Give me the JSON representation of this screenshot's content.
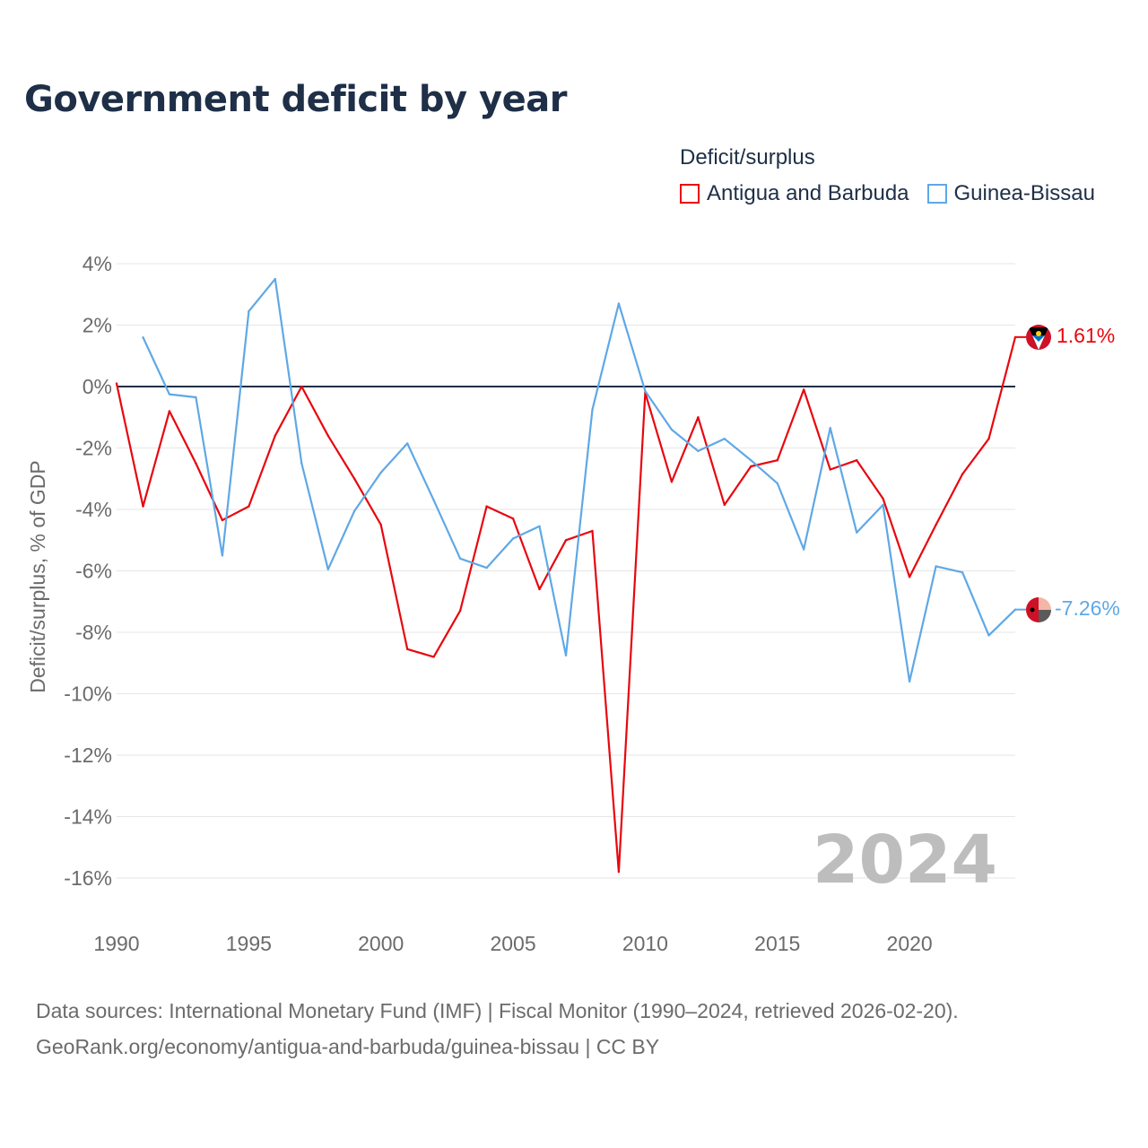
{
  "title": "Government deficit by year",
  "legend": {
    "title": "Deficit/surplus",
    "entries": [
      {
        "label": "Antigua and Barbuda",
        "color": "#e8070e"
      },
      {
        "label": "Guinea-Bissau",
        "color": "#5fa8e6"
      }
    ]
  },
  "footer": {
    "line1": "Data sources: International Monetary Fund (IMF) | Fiscal Monitor (1990–2024, retrieved 2026-02-20).",
    "line2": "GeoRank.org/economy/antigua-and-barbuda/guinea-bissau | CC BY"
  },
  "chart_data": {
    "type": "line",
    "title": "Government deficit by year",
    "ylabel": "Deficit/surplus, % of GDP",
    "xlabel": "",
    "xlim": [
      1990,
      2024
    ],
    "ylim": [
      -17,
      4
    ],
    "y_ticks": [
      4,
      2,
      0,
      -2,
      -4,
      -6,
      -8,
      -10,
      -12,
      -14,
      -16
    ],
    "y_tick_labels": [
      "4%",
      "2%",
      "0%",
      "-2%",
      "-4%",
      "-6%",
      "-8%",
      "-10%",
      "-12%",
      "-14%",
      "-16%"
    ],
    "x_ticks": [
      1990,
      1995,
      2000,
      2005,
      2010,
      2015,
      2020
    ],
    "x_tick_labels": [
      "1990",
      "1995",
      "2000",
      "2005",
      "2010",
      "2015",
      "2020"
    ],
    "zero_line": 0,
    "grid": true,
    "legend_position": "top-right",
    "year_watermark": "2024",
    "series": [
      {
        "name": "Antigua and Barbuda",
        "color": "#e8070e",
        "end_label": "1.61%",
        "points": [
          [
            1990,
            0.1
          ],
          [
            1991,
            -3.9
          ],
          [
            1992,
            -0.8
          ],
          [
            1993,
            -2.5
          ],
          [
            1994,
            -4.35
          ],
          [
            1995,
            -3.9
          ],
          [
            1996,
            -1.6
          ],
          [
            1997,
            0.0
          ],
          [
            1998,
            -1.6
          ],
          [
            1999,
            -3.0
          ],
          [
            2000,
            -4.5
          ],
          [
            2001,
            -8.55
          ],
          [
            2002,
            -8.8
          ],
          [
            2003,
            -7.3
          ],
          [
            2004,
            -3.9
          ],
          [
            2005,
            -4.3
          ],
          [
            2006,
            -6.6
          ],
          [
            2007,
            -5.0
          ],
          [
            2008,
            -4.7
          ],
          [
            2009,
            -15.8
          ],
          [
            2010,
            -0.2
          ],
          [
            2011,
            -3.1
          ],
          [
            2012,
            -1.0
          ],
          [
            2013,
            -3.85
          ],
          [
            2014,
            -2.6
          ],
          [
            2015,
            -2.4
          ],
          [
            2016,
            -0.1
          ],
          [
            2017,
            -2.7
          ],
          [
            2018,
            -2.4
          ],
          [
            2019,
            -3.65
          ],
          [
            2020,
            -6.2
          ],
          [
            2021,
            -4.5
          ],
          [
            2022,
            -2.85
          ],
          [
            2023,
            -1.7
          ],
          [
            2024,
            1.61
          ]
        ]
      },
      {
        "name": "Guinea-Bissau",
        "color": "#5fa8e6",
        "end_label": "-7.26%",
        "points": [
          [
            1991,
            1.6
          ],
          [
            1992,
            -0.25
          ],
          [
            1993,
            -0.35
          ],
          [
            1994,
            -5.5
          ],
          [
            1995,
            2.45
          ],
          [
            1996,
            3.5
          ],
          [
            1997,
            -2.5
          ],
          [
            1998,
            -5.95
          ],
          [
            1999,
            -4.05
          ],
          [
            2000,
            -2.8
          ],
          [
            2001,
            -1.85
          ],
          [
            2002,
            -3.7
          ],
          [
            2003,
            -5.6
          ],
          [
            2004,
            -5.9
          ],
          [
            2005,
            -4.95
          ],
          [
            2006,
            -4.55
          ],
          [
            2007,
            -8.75
          ],
          [
            2008,
            -0.75
          ],
          [
            2009,
            2.7
          ],
          [
            2010,
            -0.15
          ],
          [
            2011,
            -1.4
          ],
          [
            2012,
            -2.1
          ],
          [
            2013,
            -1.7
          ],
          [
            2014,
            -2.4
          ],
          [
            2015,
            -3.15
          ],
          [
            2016,
            -5.3
          ],
          [
            2017,
            -1.35
          ],
          [
            2018,
            -4.75
          ],
          [
            2019,
            -3.85
          ],
          [
            2020,
            -9.6
          ],
          [
            2021,
            -5.85
          ],
          [
            2022,
            -6.05
          ],
          [
            2023,
            -8.1
          ],
          [
            2024,
            -7.26
          ]
        ]
      }
    ]
  }
}
